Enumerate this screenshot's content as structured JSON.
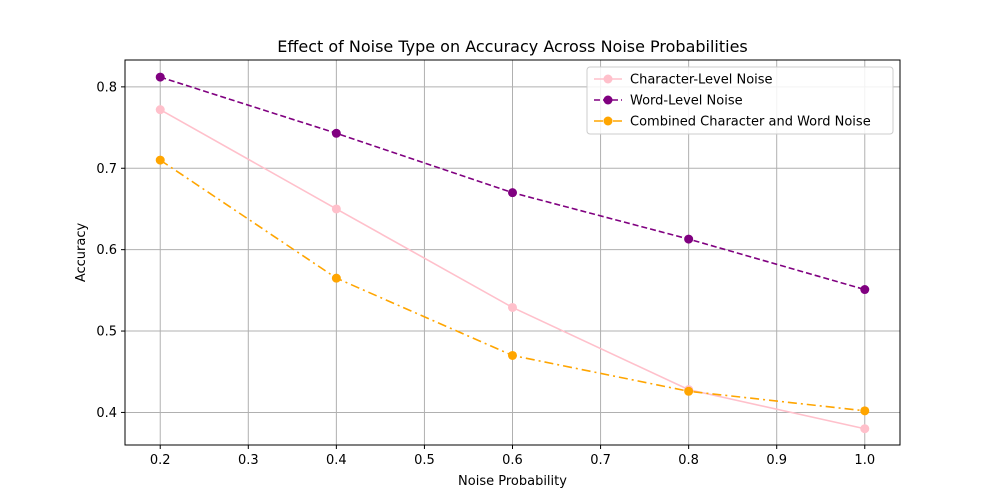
{
  "chart_data": {
    "type": "line",
    "title": "Effect of Noise Type on Accuracy Across Noise Probabilities",
    "xlabel": "Noise Probability",
    "ylabel": "Accuracy",
    "x": [
      0.2,
      0.4,
      0.6,
      0.8,
      1.0
    ],
    "xlim": [
      0.16,
      1.04
    ],
    "ylim": [
      0.36,
      0.833
    ],
    "xticks": [
      "0.2",
      "0.3",
      "0.4",
      "0.5",
      "0.6",
      "0.7",
      "0.8",
      "0.9",
      "1.0"
    ],
    "yticks": [
      "0.4",
      "0.5",
      "0.6",
      "0.7",
      "0.8"
    ],
    "grid": true,
    "legend_position": "top-right",
    "series": [
      {
        "name": "Character-Level Noise",
        "values": [
          0.772,
          0.65,
          0.529,
          0.428,
          0.38
        ],
        "color": "#ffc0cb",
        "linestyle": "solid"
      },
      {
        "name": "Word-Level Noise",
        "values": [
          0.812,
          0.743,
          0.67,
          0.613,
          0.551
        ],
        "color": "#800080",
        "linestyle": "dashed"
      },
      {
        "name": "Combined Character and Word Noise",
        "values": [
          0.71,
          0.565,
          0.47,
          0.426,
          0.402
        ],
        "color": "#ffa500",
        "linestyle": "dashdot"
      }
    ]
  }
}
